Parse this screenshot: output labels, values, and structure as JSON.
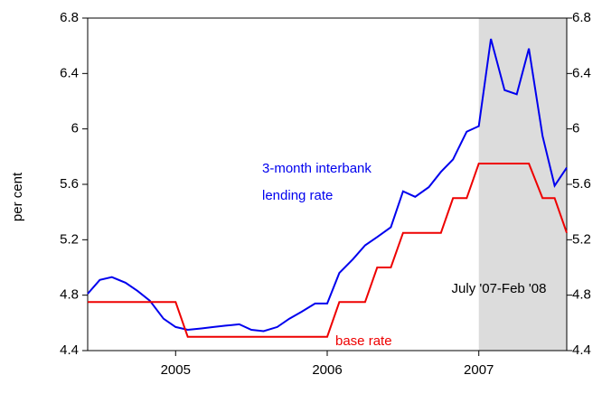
{
  "chart_data": {
    "type": "line",
    "y_label": "per cent",
    "x": [
      2004.92,
      2005.0,
      2005.08,
      2005.17,
      2005.25,
      2005.33,
      2005.42,
      2005.5,
      2005.58,
      2005.67,
      2005.75,
      2005.83,
      2005.92,
      2006.0,
      2006.08,
      2006.17,
      2006.25,
      2006.33,
      2006.42,
      2006.5,
      2006.58,
      2006.67,
      2006.75,
      2006.83,
      2006.92,
      2007.0,
      2007.08,
      2007.17,
      2007.25,
      2007.33,
      2007.42,
      2007.5,
      2007.58,
      2007.67,
      2007.75,
      2007.83,
      2007.92,
      2008.0,
      2008.08
    ],
    "series": [
      {
        "name": "3-month interbank lending rate",
        "label_lines": [
          "3-month interbank",
          "lending rate"
        ],
        "color": "#0000ee",
        "values": [
          4.81,
          4.91,
          4.93,
          4.89,
          4.83,
          4.76,
          4.63,
          4.57,
          4.55,
          4.56,
          4.57,
          4.58,
          4.59,
          4.55,
          4.54,
          4.57,
          4.63,
          4.68,
          4.74,
          4.74,
          4.96,
          5.06,
          5.16,
          5.22,
          5.29,
          5.55,
          5.51,
          5.58,
          5.69,
          5.78,
          5.98,
          6.02,
          6.65,
          6.28,
          6.25,
          6.58,
          5.95,
          5.59,
          5.72
        ]
      },
      {
        "name": "base rate",
        "color": "#ee0000",
        "values": [
          4.75,
          4.75,
          4.75,
          4.75,
          4.75,
          4.75,
          4.75,
          4.75,
          4.5,
          4.5,
          4.5,
          4.5,
          4.5,
          4.5,
          4.5,
          4.5,
          4.5,
          4.5,
          4.5,
          4.5,
          4.75,
          4.75,
          4.75,
          5.0,
          5.0,
          5.25,
          5.25,
          5.25,
          5.25,
          5.5,
          5.5,
          5.75,
          5.75,
          5.75,
          5.75,
          5.75,
          5.5,
          5.5,
          5.25
        ]
      }
    ],
    "shade": {
      "from": 2007.5,
      "to": 2008.08,
      "label": "July '07-Feb '08",
      "color": "#dcdcdc"
    },
    "xlim": [
      2004.92,
      2008.08
    ],
    "xticks": [
      {
        "value": 2005.5,
        "label": "2005"
      },
      {
        "value": 2006.5,
        "label": "2006"
      },
      {
        "value": 2007.5,
        "label": "2007"
      }
    ],
    "ylim": [
      4.4,
      6.8
    ],
    "yticks": [
      4.4,
      4.8,
      5.2,
      5.6,
      6.0,
      6.4,
      6.8
    ],
    "y2lim": [
      4.4,
      6.8
    ],
    "y2ticks": [
      4.4,
      4.8,
      5.2,
      5.6,
      6.0,
      6.4,
      6.8
    ],
    "grid": false
  }
}
